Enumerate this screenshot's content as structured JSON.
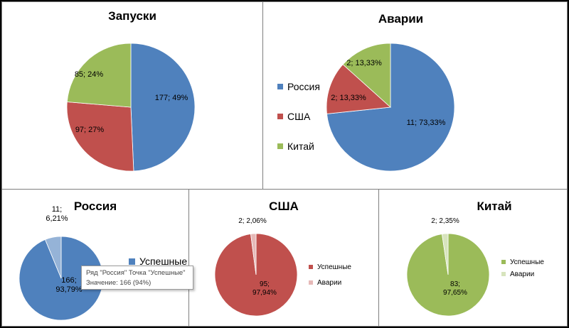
{
  "chart_data": [
    {
      "type": "pie",
      "title": "Запуски",
      "categories": [
        "Россия",
        "США",
        "Китай"
      ],
      "values": [
        177,
        97,
        85
      ],
      "labels": [
        "177; 49%",
        "97; 27%",
        "85; 24%"
      ],
      "colors": [
        "#4f81bd",
        "#c0504d",
        "#9bbb59"
      ],
      "legend": "none"
    },
    {
      "type": "pie",
      "title": "Аварии",
      "categories": [
        "Россия",
        "США",
        "Китай"
      ],
      "values": [
        11,
        2,
        2
      ],
      "labels": [
        "11; 73,33%",
        "2; 13,33%",
        "2; 13,33%"
      ],
      "colors": [
        "#4f81bd",
        "#c0504d",
        "#9bbb59"
      ],
      "legend": "left",
      "legend_entries": [
        "Россия",
        "США",
        "Китай"
      ]
    },
    {
      "type": "pie",
      "title": "Россия",
      "categories": [
        "Успешные",
        "Аварии"
      ],
      "values": [
        166,
        11
      ],
      "labels": [
        "166; 93,79%",
        "11; 6,21%"
      ],
      "colors": [
        "#4f81bd",
        "#95b3d7"
      ],
      "legend": "right",
      "legend_entries": [
        "Успешные"
      ]
    },
    {
      "type": "pie",
      "title": "США",
      "categories": [
        "Успешные",
        "Аварии"
      ],
      "values": [
        95,
        2
      ],
      "labels": [
        "95; 97,94%",
        "2; 2,06%"
      ],
      "colors": [
        "#c0504d",
        "#e6b9b8"
      ],
      "legend": "right",
      "legend_entries": [
        "Успешные",
        "Аварии"
      ]
    },
    {
      "type": "pie",
      "title": "Китай",
      "categories": [
        "Успешные",
        "Аварии"
      ],
      "values": [
        83,
        2
      ],
      "labels": [
        "83; 97,65%",
        "2; 2,35%"
      ],
      "colors": [
        "#9bbb59",
        "#d7e4bd"
      ],
      "legend": "right",
      "legend_entries": [
        "Успешные",
        "Аварии"
      ]
    }
  ],
  "tooltip": {
    "line1": "Ряд \"Россия\" Точка \"Успешные\"",
    "line2": "Значение: 166 (94%)"
  }
}
